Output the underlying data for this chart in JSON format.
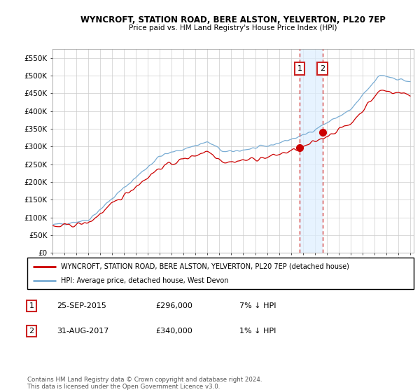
{
  "title": "WYNCROFT, STATION ROAD, BERE ALSTON, YELVERTON, PL20 7EP",
  "subtitle": "Price paid vs. HM Land Registry's House Price Index (HPI)",
  "ylim": [
    0,
    575000
  ],
  "yticks": [
    0,
    50000,
    100000,
    150000,
    200000,
    250000,
    300000,
    350000,
    400000,
    450000,
    500000,
    550000
  ],
  "ytick_labels": [
    "£0",
    "£50K",
    "£100K",
    "£150K",
    "£200K",
    "£250K",
    "£300K",
    "£350K",
    "£400K",
    "£450K",
    "£500K",
    "£550K"
  ],
  "sale1_price": 296000,
  "sale1_year": 2015.73,
  "sale2_price": 340000,
  "sale2_year": 2017.66,
  "line1_color": "#cc0000",
  "line2_color": "#7aadd4",
  "shade_color": "#ddeeff",
  "marker_color": "#cc2222",
  "grid_color": "#cccccc",
  "legend_line1": "WYNCROFT, STATION ROAD, BERE ALSTON, YELVERTON, PL20 7EP (detached house)",
  "legend_line2": "HPI: Average price, detached house, West Devon",
  "footer": "Contains HM Land Registry data © Crown copyright and database right 2024.\nThis data is licensed under the Open Government Licence v3.0.",
  "table_row1": [
    "1",
    "25-SEP-2015",
    "£296,000",
    "7% ↓ HPI"
  ],
  "table_row2": [
    "2",
    "31-AUG-2017",
    "£340,000",
    "1% ↓ HPI"
  ]
}
